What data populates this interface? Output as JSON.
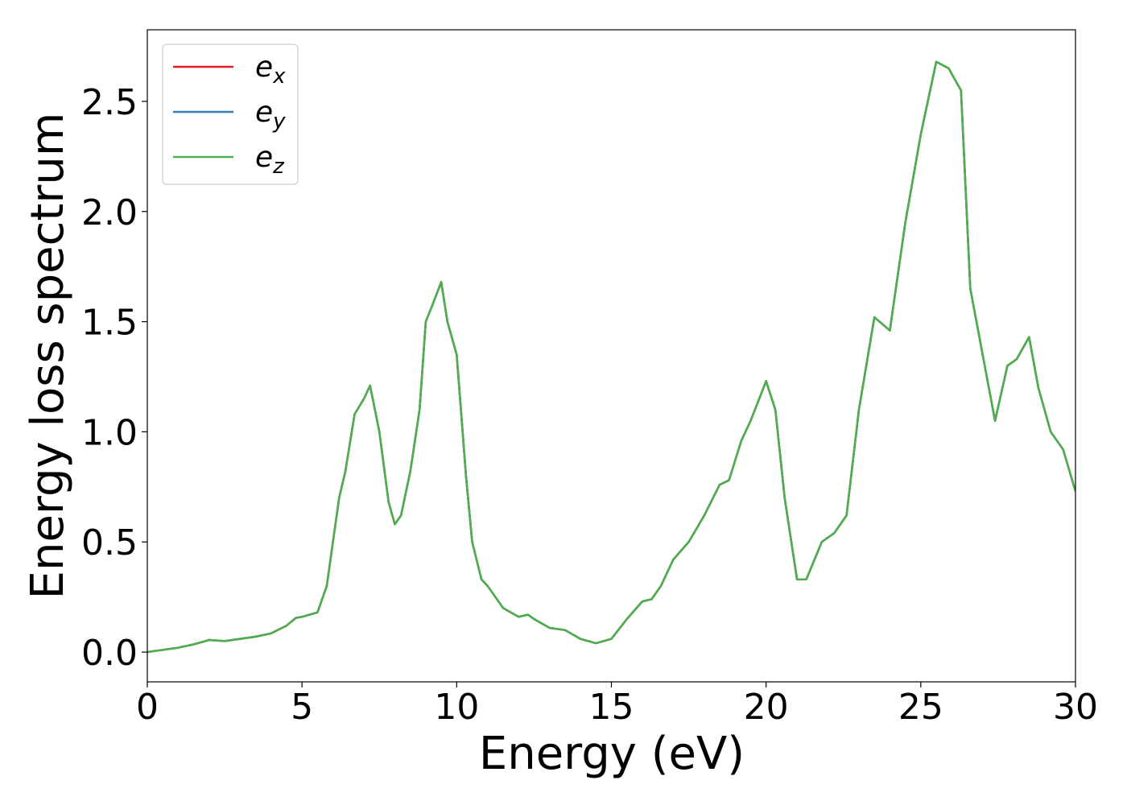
{
  "chart_data": {
    "type": "line",
    "xlabel": "Energy (eV)",
    "ylabel": "Energy loss spectrum",
    "xlim": [
      0,
      30
    ],
    "ylim": [
      -0.135,
      2.825
    ],
    "xticks": [
      0,
      5,
      10,
      15,
      20,
      25,
      30
    ],
    "yticks": [
      {
        "value": 0,
        "label": "0.0"
      },
      0.5,
      {
        "value": 1,
        "label": "1.0"
      },
      1.5,
      {
        "value": 2,
        "label": "2.0"
      },
      2.5
    ],
    "grid": false,
    "legend": "upper left",
    "x": [
      0,
      0.5,
      1,
      1.5,
      2,
      2.5,
      3,
      3.5,
      4,
      4.5,
      4.8,
      5,
      5.5,
      5.8,
      6,
      6.2,
      6.4,
      6.7,
      7,
      7.2,
      7.5,
      7.8,
      8,
      8.2,
      8.5,
      8.8,
      9,
      9.2,
      9.5,
      9.7,
      10,
      10.3,
      10.5,
      10.8,
      11,
      11.5,
      12,
      12.3,
      12.5,
      13,
      13.5,
      14,
      14.5,
      15,
      15.5,
      16,
      16.3,
      16.6,
      17,
      17.5,
      18,
      18.5,
      18.8,
      19.2,
      19.5,
      20,
      20.3,
      20.6,
      21,
      21.3,
      21.8,
      22.2,
      22.6,
      23,
      23.5,
      24,
      24.5,
      25,
      25.5,
      25.9,
      26.3,
      26.6,
      27,
      27.4,
      27.8,
      28.1,
      28.5,
      28.8,
      29.2,
      29.6,
      30
    ],
    "series": [
      {
        "name": "ex",
        "color": "#e41a1c",
        "values": [
          0,
          0.01,
          0.02,
          0.035,
          0.055,
          0.05,
          0.06,
          0.07,
          0.085,
          0.12,
          0.155,
          0.16,
          0.18,
          0.3,
          0.5,
          0.7,
          0.82,
          1.08,
          1.15,
          1.21,
          1.0,
          0.68,
          0.58,
          0.62,
          0.82,
          1.1,
          1.5,
          1.57,
          1.68,
          1.5,
          1.35,
          0.8,
          0.5,
          0.33,
          0.3,
          0.2,
          0.16,
          0.17,
          0.15,
          0.11,
          0.1,
          0.06,
          0.04,
          0.06,
          0.15,
          0.23,
          0.24,
          0.3,
          0.42,
          0.5,
          0.62,
          0.76,
          0.78,
          0.96,
          1.05,
          1.23,
          1.1,
          0.7,
          0.33,
          0.33,
          0.5,
          0.54,
          0.62,
          1.1,
          1.52,
          1.46,
          1.95,
          2.35,
          2.68,
          2.65,
          2.55,
          1.65,
          1.35,
          1.05,
          1.3,
          1.33,
          1.43,
          1.2,
          1.0,
          0.92,
          0.73
        ]
      },
      {
        "name": "ey",
        "color": "#377eb8",
        "values": [
          0,
          0.01,
          0.02,
          0.035,
          0.055,
          0.05,
          0.06,
          0.07,
          0.085,
          0.12,
          0.155,
          0.16,
          0.18,
          0.3,
          0.5,
          0.7,
          0.82,
          1.08,
          1.15,
          1.21,
          1.0,
          0.68,
          0.58,
          0.62,
          0.82,
          1.1,
          1.5,
          1.57,
          1.68,
          1.5,
          1.35,
          0.8,
          0.5,
          0.33,
          0.3,
          0.2,
          0.16,
          0.17,
          0.15,
          0.11,
          0.1,
          0.06,
          0.04,
          0.06,
          0.15,
          0.23,
          0.24,
          0.3,
          0.42,
          0.5,
          0.62,
          0.76,
          0.78,
          0.96,
          1.05,
          1.23,
          1.1,
          0.7,
          0.33,
          0.33,
          0.5,
          0.54,
          0.62,
          1.1,
          1.52,
          1.46,
          1.95,
          2.35,
          2.68,
          2.65,
          2.55,
          1.65,
          1.35,
          1.05,
          1.3,
          1.33,
          1.43,
          1.2,
          1.0,
          0.92,
          0.73
        ]
      },
      {
        "name": "ez",
        "color": "#4daf4a",
        "values": [
          0,
          0.01,
          0.02,
          0.035,
          0.055,
          0.05,
          0.06,
          0.07,
          0.085,
          0.12,
          0.155,
          0.16,
          0.18,
          0.3,
          0.5,
          0.7,
          0.82,
          1.08,
          1.15,
          1.21,
          1.0,
          0.68,
          0.58,
          0.62,
          0.82,
          1.1,
          1.5,
          1.57,
          1.68,
          1.5,
          1.35,
          0.8,
          0.5,
          0.33,
          0.3,
          0.2,
          0.16,
          0.17,
          0.15,
          0.11,
          0.1,
          0.06,
          0.04,
          0.06,
          0.15,
          0.23,
          0.24,
          0.3,
          0.42,
          0.5,
          0.62,
          0.76,
          0.78,
          0.96,
          1.05,
          1.23,
          1.1,
          0.7,
          0.33,
          0.33,
          0.5,
          0.54,
          0.62,
          1.1,
          1.52,
          1.46,
          1.95,
          2.35,
          2.68,
          2.65,
          2.55,
          1.65,
          1.35,
          1.05,
          1.3,
          1.33,
          1.43,
          1.2,
          1.0,
          0.92,
          0.73
        ]
      }
    ]
  }
}
